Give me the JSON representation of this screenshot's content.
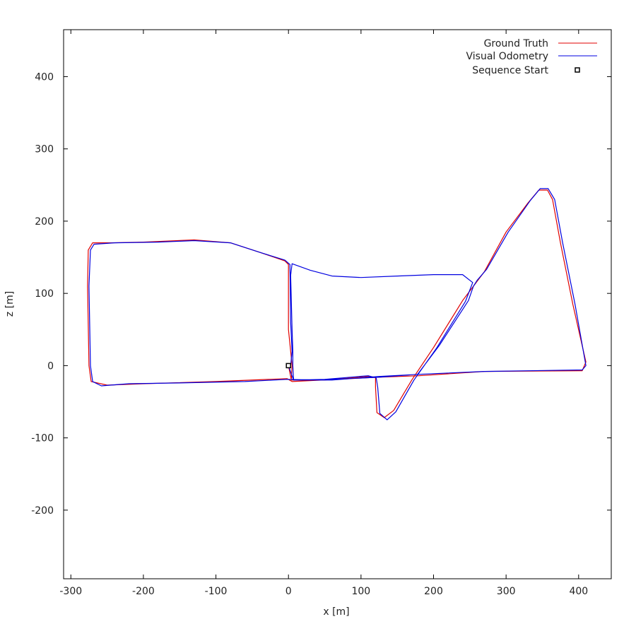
{
  "chart_data": {
    "type": "line",
    "xlabel": "x [m]",
    "ylabel": "z [m]",
    "xlim": [
      -310,
      445
    ],
    "ylim": [
      -295,
      465
    ],
    "x_ticks": [
      -300,
      -200,
      -100,
      0,
      100,
      200,
      300,
      400
    ],
    "y_ticks": [
      -200,
      -100,
      0,
      100,
      200,
      300,
      400
    ],
    "x_tick_labels": [
      "-300",
      "-200",
      "-100",
      "0",
      "100",
      "200",
      "300",
      "400"
    ],
    "y_tick_labels": [
      "-200",
      "-100",
      "0",
      "100",
      "200",
      "300",
      "400"
    ],
    "grid": false,
    "legend_position": "top-right",
    "series": [
      {
        "name": "Ground Truth",
        "color": "#e00000",
        "points": [
          [
            0,
            0
          ],
          [
            4,
            -20
          ],
          [
            50,
            -20
          ],
          [
            110,
            -15
          ],
          [
            120,
            -16
          ],
          [
            120,
            -30
          ],
          [
            122,
            -65
          ],
          [
            132,
            -72
          ],
          [
            145,
            -62
          ],
          [
            170,
            -20
          ],
          [
            200,
            25
          ],
          [
            240,
            90
          ],
          [
            270,
            130
          ],
          [
            300,
            185
          ],
          [
            330,
            225
          ],
          [
            345,
            243
          ],
          [
            357,
            243
          ],
          [
            364,
            230
          ],
          [
            375,
            170
          ],
          [
            392,
            85
          ],
          [
            410,
            5
          ],
          [
            405,
            -7
          ],
          [
            270,
            -8
          ],
          [
            180,
            -14
          ],
          [
            124,
            -16
          ],
          [
            5,
            -22
          ],
          [
            -2,
            -18
          ],
          [
            -100,
            -22
          ],
          [
            -200,
            -25
          ],
          [
            -250,
            -27
          ],
          [
            -272,
            -22
          ],
          [
            -275,
            0
          ],
          [
            -277,
            110
          ],
          [
            -276,
            160
          ],
          [
            -270,
            170
          ],
          [
            -245,
            170
          ],
          [
            -200,
            171
          ],
          [
            -130,
            174
          ],
          [
            -80,
            170
          ],
          [
            -40,
            157
          ],
          [
            -5,
            145
          ],
          [
            0,
            140
          ],
          [
            0,
            50
          ],
          [
            3,
            20
          ],
          [
            5,
            0
          ],
          [
            4,
            -18
          ],
          [
            10,
            -20
          ],
          [
            -200,
            -25
          ]
        ],
        "end_path": [
          [
            10,
            -20
          ],
          [
            -2,
            -18
          ]
        ]
      },
      {
        "name": "Visual Odometry",
        "color": "#0000e0",
        "points": [
          [
            0,
            0
          ],
          [
            7,
            -20
          ],
          [
            50,
            -19
          ],
          [
            110,
            -14
          ],
          [
            121,
            -17
          ],
          [
            123,
            -30
          ],
          [
            126,
            -66
          ],
          [
            136,
            -75
          ],
          [
            148,
            -64
          ],
          [
            173,
            -20
          ],
          [
            204,
            24
          ],
          [
            244,
            89
          ],
          [
            254,
            115
          ],
          [
            240,
            126
          ],
          [
            200,
            126
          ],
          [
            150,
            124
          ],
          [
            100,
            122
          ],
          [
            60,
            124
          ],
          [
            30,
            132
          ],
          [
            5,
            141
          ],
          [
            3,
            125
          ],
          [
            5,
            50
          ],
          [
            6,
            20
          ],
          [
            6,
            0
          ],
          [
            7,
            -20
          ],
          [
            60,
            -20
          ],
          [
            125,
            -15
          ],
          [
            180,
            -12
          ],
          [
            270,
            -8
          ],
          [
            405,
            -6
          ],
          [
            410,
            0
          ],
          [
            395,
            85
          ],
          [
            378,
            170
          ],
          [
            367,
            230
          ],
          [
            358,
            245
          ],
          [
            347,
            245
          ],
          [
            333,
            228
          ],
          [
            303,
            185
          ],
          [
            273,
            133
          ],
          [
            260,
            118
          ],
          [
            255,
            110
          ],
          [
            248,
            90
          ],
          [
            208,
            28
          ],
          [
            178,
            -12
          ],
          [
            125,
            -16
          ],
          [
            40,
            -20
          ],
          [
            -2,
            -19
          ],
          [
            -60,
            -22
          ],
          [
            -150,
            -24
          ],
          [
            -220,
            -25
          ],
          [
            -258,
            -28
          ],
          [
            -270,
            -22
          ],
          [
            -273,
            0
          ],
          [
            -275,
            110
          ],
          [
            -273,
            160
          ],
          [
            -268,
            168
          ],
          [
            -240,
            170
          ],
          [
            -180,
            171
          ],
          [
            -130,
            173
          ],
          [
            -80,
            170
          ],
          [
            -40,
            157
          ],
          [
            -5,
            146
          ],
          [
            2,
            140
          ],
          [
            3,
            60
          ],
          [
            5,
            20
          ],
          [
            3,
            0
          ]
        ]
      }
    ],
    "start_marker": {
      "name": "Sequence Start",
      "x": 0,
      "z": 0
    }
  }
}
